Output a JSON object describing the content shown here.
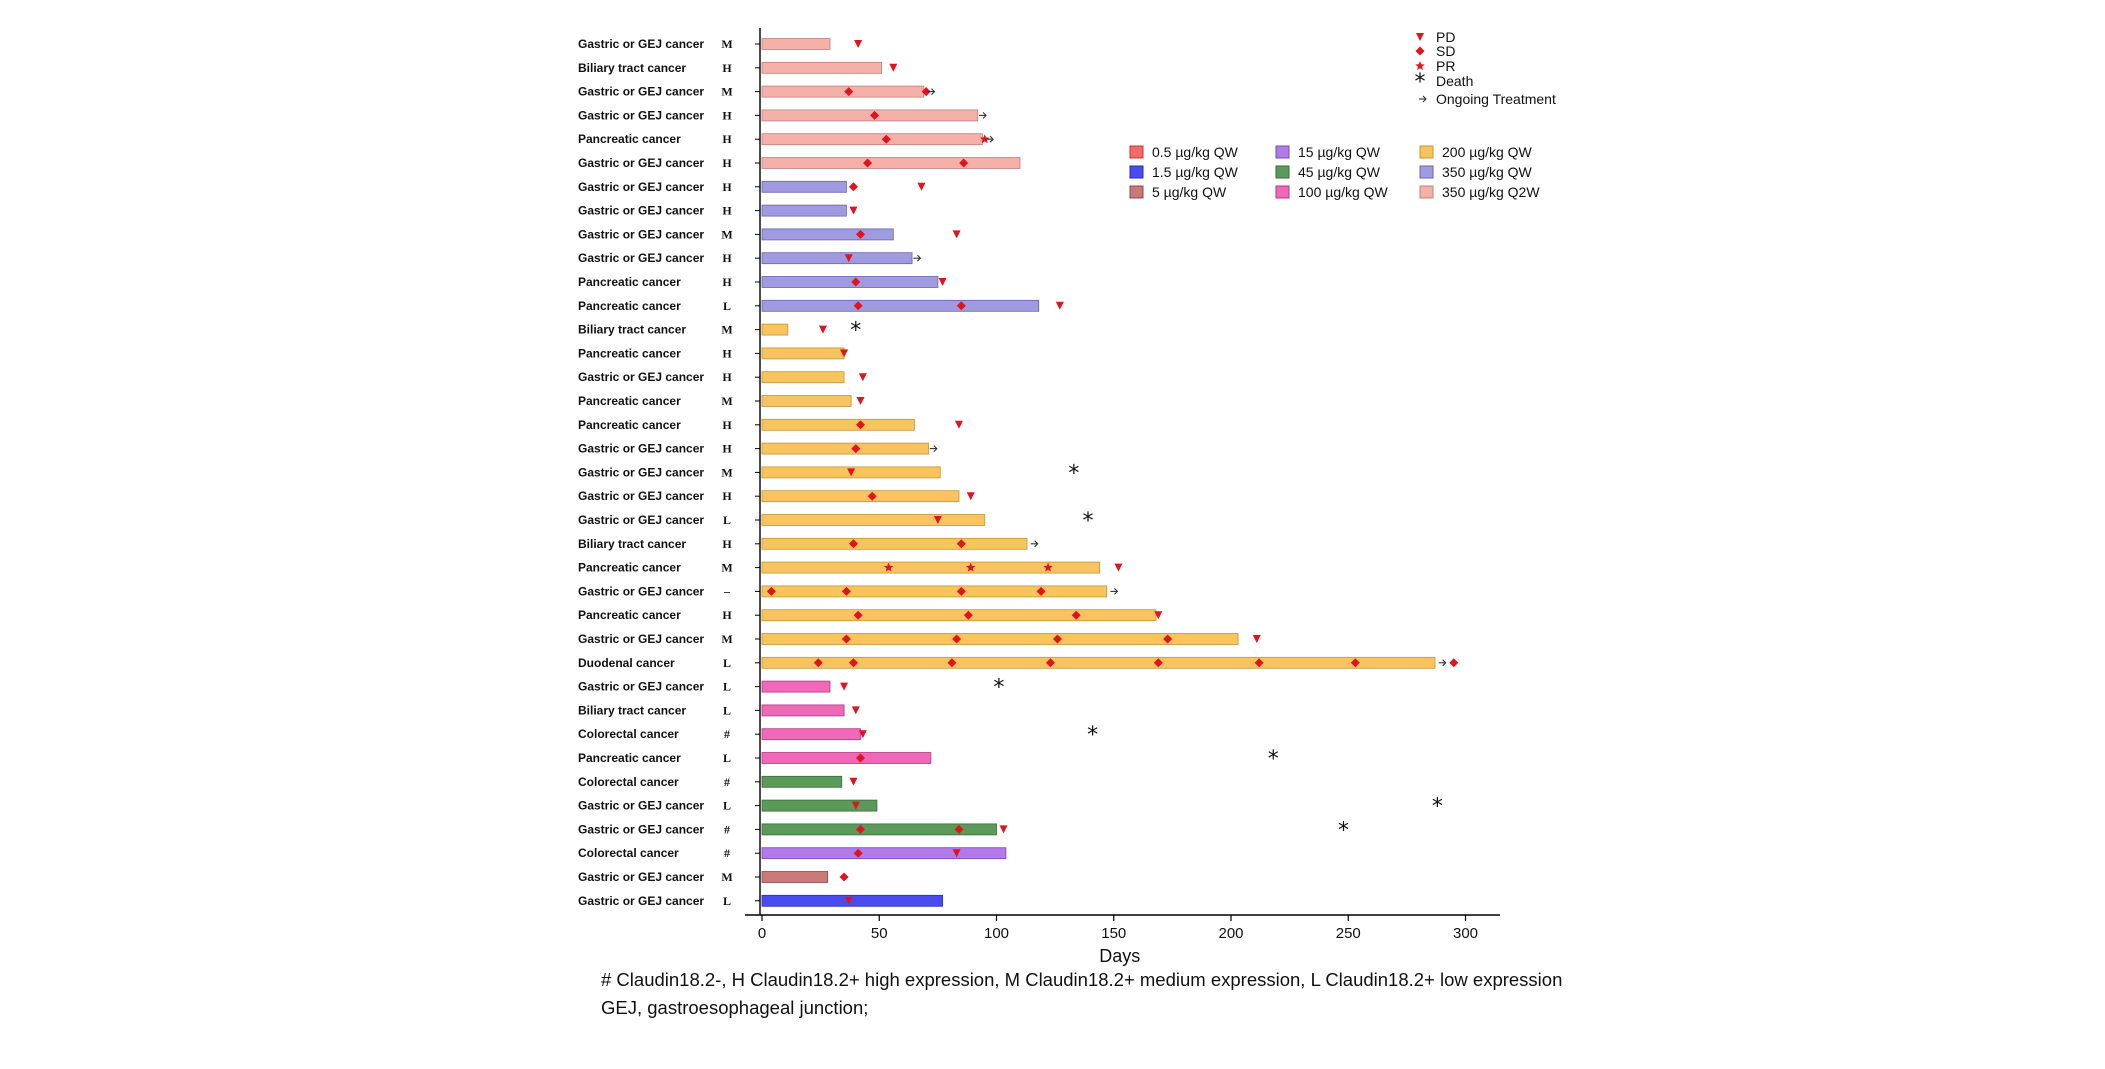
{
  "chart_data": {
    "type": "swimmer",
    "xlabel": "Days",
    "xlim": [
      -7,
      318
    ],
    "xticks": [
      0,
      50,
      100,
      150,
      200,
      250,
      300
    ],
    "markers": {
      "PD": {
        "label": "PD",
        "symbol": "▼",
        "color": "#e0141e"
      },
      "SD": {
        "label": "SD",
        "symbol": "◆",
        "color": "#e0141e"
      },
      "PR": {
        "label": "PR",
        "symbol": "★",
        "color": "#e0141e"
      },
      "Death": {
        "label": "Death",
        "symbol": "✱",
        "color": "#111111"
      },
      "Ongoing": {
        "label": "Ongoing Treatment",
        "symbol": "→",
        "color": "#333333"
      }
    },
    "doses": [
      {
        "key": "d05",
        "label": "0.5 µg/kg QW",
        "color": "#f26a6a",
        "border": "#c0392b"
      },
      {
        "key": "d15",
        "label": "1.5 µg/kg QW",
        "color": "#4a4cf0",
        "border": "#2a2cb0"
      },
      {
        "key": "d5",
        "label": "5 µg/kg QW",
        "color": "#c97a78",
        "border": "#8c4a48"
      },
      {
        "key": "d15u",
        "label": "15 µg/kg QW",
        "color": "#b07ae8",
        "border": "#7a4ab0"
      },
      {
        "key": "d45",
        "label": "45 µg/kg QW",
        "color": "#5c9a5c",
        "border": "#3a6a3a"
      },
      {
        "key": "d100",
        "label": "100 µg/kg QW",
        "color": "#f068b8",
        "border": "#b03a80"
      },
      {
        "key": "d200",
        "label": "200 µg/kg QW",
        "color": "#f8c460",
        "border": "#c89430"
      },
      {
        "key": "d350",
        "label": "350 µg/kg QW",
        "color": "#a09ae0",
        "border": "#6a64b0"
      },
      {
        "key": "d350q2",
        "label": "350 µg/kg Q2W",
        "color": "#f6b0aa",
        "border": "#c08078"
      }
    ],
    "patients": [
      {
        "cancer": "Gastric or GEJ cancer",
        "expr": "M",
        "dose": "d350q2",
        "days": 29,
        "events": [
          {
            "t": "PD",
            "d": 41
          }
        ]
      },
      {
        "cancer": "Biliary tract cancer",
        "expr": "H",
        "dose": "d350q2",
        "days": 51,
        "events": [
          {
            "t": "PD",
            "d": 56
          }
        ]
      },
      {
        "cancer": "Gastric or GEJ cancer",
        "expr": "M",
        "dose": "d350q2",
        "days": 69,
        "events": [
          {
            "t": "SD",
            "d": 37
          },
          {
            "t": "SD",
            "d": 70
          },
          {
            "t": "Ongoing",
            "d": 71
          }
        ]
      },
      {
        "cancer": "Gastric or GEJ cancer",
        "expr": "H",
        "dose": "d350q2",
        "days": 92,
        "events": [
          {
            "t": "SD",
            "d": 48
          },
          {
            "t": "Ongoing",
            "d": 93
          }
        ]
      },
      {
        "cancer": "Pancreatic cancer",
        "expr": "H",
        "dose": "d350q2",
        "days": 94,
        "events": [
          {
            "t": "SD",
            "d": 53
          },
          {
            "t": "PR",
            "d": 95
          },
          {
            "t": "Ongoing",
            "d": 96
          }
        ]
      },
      {
        "cancer": "Gastric or GEJ cancer",
        "expr": "H",
        "dose": "d350q2",
        "days": 110,
        "events": [
          {
            "t": "SD",
            "d": 45
          },
          {
            "t": "SD",
            "d": 86
          }
        ]
      },
      {
        "cancer": "Gastric or GEJ cancer",
        "expr": "H",
        "dose": "d350",
        "days": 36,
        "events": [
          {
            "t": "SD",
            "d": 39
          },
          {
            "t": "PD",
            "d": 68
          }
        ]
      },
      {
        "cancer": "Gastric or GEJ cancer",
        "expr": "H",
        "dose": "d350",
        "days": 36,
        "events": [
          {
            "t": "PD",
            "d": 39
          }
        ]
      },
      {
        "cancer": "Gastric or GEJ cancer",
        "expr": "M",
        "dose": "d350",
        "days": 56,
        "events": [
          {
            "t": "SD",
            "d": 42
          },
          {
            "t": "PD",
            "d": 83
          }
        ]
      },
      {
        "cancer": "Gastric or GEJ cancer",
        "expr": "H",
        "dose": "d350",
        "days": 64,
        "events": [
          {
            "t": "PD",
            "d": 37
          },
          {
            "t": "Ongoing",
            "d": 65
          }
        ]
      },
      {
        "cancer": "Pancreatic cancer",
        "expr": "H",
        "dose": "d350",
        "days": 75,
        "events": [
          {
            "t": "SD",
            "d": 40
          },
          {
            "t": "PD",
            "d": 77
          }
        ]
      },
      {
        "cancer": "Pancreatic cancer",
        "expr": "L",
        "dose": "d350",
        "days": 118,
        "events": [
          {
            "t": "SD",
            "d": 41
          },
          {
            "t": "SD",
            "d": 85
          },
          {
            "t": "PD",
            "d": 127
          }
        ]
      },
      {
        "cancer": "Biliary tract cancer",
        "expr": "M",
        "dose": "d200",
        "days": 11,
        "events": [
          {
            "t": "PD",
            "d": 26
          },
          {
            "t": "Death",
            "d": 40
          }
        ]
      },
      {
        "cancer": "Pancreatic cancer",
        "expr": "H",
        "dose": "d200",
        "days": 35,
        "events": [
          {
            "t": "PD",
            "d": 35
          }
        ]
      },
      {
        "cancer": "Gastric or GEJ cancer",
        "expr": "H",
        "dose": "d200",
        "days": 35,
        "events": [
          {
            "t": "PD",
            "d": 43
          }
        ]
      },
      {
        "cancer": "Pancreatic cancer",
        "expr": "M",
        "dose": "d200",
        "days": 38,
        "events": [
          {
            "t": "PD",
            "d": 42
          }
        ]
      },
      {
        "cancer": "Pancreatic cancer",
        "expr": "H",
        "dose": "d200",
        "days": 65,
        "events": [
          {
            "t": "SD",
            "d": 42
          },
          {
            "t": "PD",
            "d": 84
          }
        ]
      },
      {
        "cancer": "Gastric or GEJ cancer",
        "expr": "H",
        "dose": "d200",
        "days": 71,
        "events": [
          {
            "t": "SD",
            "d": 40
          },
          {
            "t": "Ongoing",
            "d": 72
          }
        ]
      },
      {
        "cancer": "Gastric or GEJ cancer",
        "expr": "M",
        "dose": "d200",
        "days": 76,
        "events": [
          {
            "t": "PD",
            "d": 38
          },
          {
            "t": "Death",
            "d": 133
          }
        ]
      },
      {
        "cancer": "Gastric or GEJ cancer",
        "expr": "H",
        "dose": "d200",
        "days": 84,
        "events": [
          {
            "t": "SD",
            "d": 47
          },
          {
            "t": "PD",
            "d": 89
          }
        ]
      },
      {
        "cancer": "Gastric or GEJ cancer",
        "expr": "L",
        "dose": "d200",
        "days": 95,
        "events": [
          {
            "t": "PD",
            "d": 75
          },
          {
            "t": "Death",
            "d": 139
          }
        ]
      },
      {
        "cancer": "Biliary tract cancer",
        "expr": "H",
        "dose": "d200",
        "days": 113,
        "events": [
          {
            "t": "SD",
            "d": 39
          },
          {
            "t": "SD",
            "d": 85
          },
          {
            "t": "Ongoing",
            "d": 115
          }
        ]
      },
      {
        "cancer": "Pancreatic cancer",
        "expr": "M",
        "dose": "d200",
        "days": 144,
        "events": [
          {
            "t": "PR",
            "d": 54
          },
          {
            "t": "PR",
            "d": 89
          },
          {
            "t": "PR",
            "d": 122
          },
          {
            "t": "PD",
            "d": 152
          }
        ]
      },
      {
        "cancer": "Gastric or GEJ cancer",
        "expr": "–",
        "dose": "d200",
        "days": 147,
        "events": [
          {
            "t": "SD",
            "d": 4
          },
          {
            "t": "SD",
            "d": 36
          },
          {
            "t": "SD",
            "d": 85
          },
          {
            "t": "SD",
            "d": 119
          },
          {
            "t": "Ongoing",
            "d": 149
          }
        ]
      },
      {
        "cancer": "Pancreatic cancer",
        "expr": "H",
        "dose": "d200",
        "days": 168,
        "events": [
          {
            "t": "SD",
            "d": 41
          },
          {
            "t": "SD",
            "d": 88
          },
          {
            "t": "SD",
            "d": 134
          },
          {
            "t": "PD",
            "d": 169
          }
        ]
      },
      {
        "cancer": "Gastric or GEJ cancer",
        "expr": "M",
        "dose": "d200",
        "days": 203,
        "events": [
          {
            "t": "SD",
            "d": 36
          },
          {
            "t": "SD",
            "d": 83
          },
          {
            "t": "SD",
            "d": 126
          },
          {
            "t": "SD",
            "d": 173
          },
          {
            "t": "PD",
            "d": 211
          }
        ]
      },
      {
        "cancer": "Duodenal cancer",
        "expr": "L",
        "dose": "d200",
        "days": 287,
        "events": [
          {
            "t": "SD",
            "d": 24
          },
          {
            "t": "SD",
            "d": 39
          },
          {
            "t": "SD",
            "d": 81
          },
          {
            "t": "SD",
            "d": 123
          },
          {
            "t": "SD",
            "d": 169
          },
          {
            "t": "SD",
            "d": 212
          },
          {
            "t": "SD",
            "d": 253
          },
          {
            "t": "Ongoing",
            "d": 289
          },
          {
            "t": "SD",
            "d": 295
          }
        ]
      },
      {
        "cancer": "Gastric or GEJ cancer",
        "expr": "L",
        "dose": "d100",
        "days": 29,
        "events": [
          {
            "t": "PD",
            "d": 35
          },
          {
            "t": "Death",
            "d": 101
          }
        ]
      },
      {
        "cancer": "Biliary tract cancer",
        "expr": "L",
        "dose": "d100",
        "days": 35,
        "events": [
          {
            "t": "PD",
            "d": 40
          }
        ]
      },
      {
        "cancer": "Colorectal cancer",
        "expr": "#",
        "dose": "d100",
        "days": 42,
        "events": [
          {
            "t": "PD",
            "d": 43
          },
          {
            "t": "Death",
            "d": 141
          }
        ]
      },
      {
        "cancer": "Pancreatic cancer",
        "expr": "L",
        "dose": "d100",
        "days": 72,
        "events": [
          {
            "t": "SD",
            "d": 42
          },
          {
            "t": "Death",
            "d": 218
          }
        ]
      },
      {
        "cancer": "Colorectal cancer",
        "expr": "#",
        "dose": "d45",
        "days": 34,
        "events": [
          {
            "t": "PD",
            "d": 39
          }
        ]
      },
      {
        "cancer": "Gastric or GEJ cancer",
        "expr": "L",
        "dose": "d45",
        "days": 49,
        "events": [
          {
            "t": "PD",
            "d": 40
          },
          {
            "t": "Death",
            "d": 288
          }
        ]
      },
      {
        "cancer": "Gastric or GEJ cancer",
        "expr": "#",
        "dose": "d45",
        "days": 100,
        "events": [
          {
            "t": "SD",
            "d": 42
          },
          {
            "t": "SD",
            "d": 84
          },
          {
            "t": "PD",
            "d": 103
          },
          {
            "t": "Death",
            "d": 248
          }
        ]
      },
      {
        "cancer": "Colorectal cancer",
        "expr": "#",
        "dose": "d15u",
        "days": 104,
        "events": [
          {
            "t": "SD",
            "d": 41
          },
          {
            "t": "PD",
            "d": 83
          }
        ]
      },
      {
        "cancer": "Gastric or GEJ cancer",
        "expr": "M",
        "dose": "d5",
        "days": 28,
        "events": [
          {
            "t": "SD",
            "d": 35
          }
        ]
      },
      {
        "cancer": "Gastric or GEJ cancer",
        "expr": "L",
        "dose": "d15",
        "days": 77,
        "events": [
          {
            "t": "PD",
            "d": 37
          }
        ]
      }
    ]
  },
  "footnotes": {
    "line1": "# Claudin18.2-, H Claudin18.2+ high expression, M Claudin18.2+ medium expression, L Claudin18.2+ low expression",
    "line2": "GEJ, gastroesophageal junction;"
  }
}
